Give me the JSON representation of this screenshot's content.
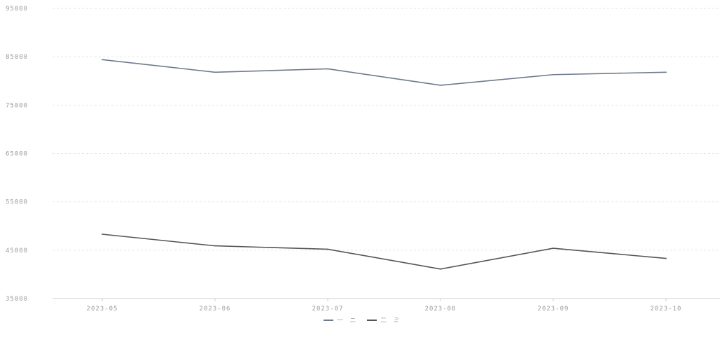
{
  "chart_data": {
    "type": "line",
    "title": "",
    "xlabel": "",
    "ylabel": "",
    "categories": [
      "2023-05",
      "2023-06",
      "2023-07",
      "2023-08",
      "2023-09",
      "2023-10"
    ],
    "y_ticks": [
      "35000",
      "45000",
      "55000",
      "65000",
      "75000",
      "85000",
      "95000"
    ],
    "ylim": [
      35000,
      95000
    ],
    "grid": true,
    "legend_position": "bottom-center",
    "series": [
      {
        "name": "一 ニ",
        "color": "#6f7a8c",
        "values": [
          84400,
          81800,
          82500,
          79100,
          81300,
          81800
        ]
      },
      {
        "name": "二 ミ",
        "color": "#555555",
        "values": [
          48300,
          45900,
          45200,
          41100,
          45400,
          43300
        ]
      }
    ]
  }
}
